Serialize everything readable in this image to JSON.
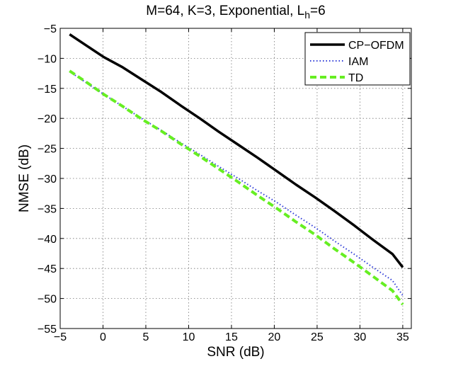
{
  "chart_data": {
    "type": "line",
    "title_main": "M=64, K=3, Exponential, L",
    "title_sub": "h",
    "title_suffix": "=6",
    "xlabel": "SNR (dB)",
    "ylabel": "NMSE (dB)",
    "xlim": [
      -5,
      36
    ],
    "ylim": [
      -55,
      -5
    ],
    "xticks": [
      -5,
      0,
      5,
      10,
      15,
      20,
      25,
      30,
      35
    ],
    "yticks": [
      -55,
      -50,
      -45,
      -40,
      -35,
      -30,
      -25,
      -20,
      -15,
      -10,
      -5
    ],
    "xtick_labels": [
      "−5",
      "0",
      "5",
      "10",
      "15",
      "20",
      "25",
      "30",
      "35"
    ],
    "ytick_labels": [
      "−55",
      "−50",
      "−45",
      "−40",
      "−35",
      "−30",
      "−25",
      "−20",
      "−15",
      "−10",
      "−5"
    ],
    "grid": true,
    "legend_position": "top-right",
    "x": [
      -3.9,
      -1.8,
      0.1,
      2.3,
      4.5,
      6.8,
      9.0,
      11.3,
      13.5,
      15.8,
      18.0,
      20.3,
      22.5,
      24.8,
      27.0,
      29.3,
      31.5,
      33.8,
      35
    ],
    "series": [
      {
        "name": "CP−OFDM",
        "color": "#000000",
        "style": "solid",
        "values": [
          -6.0,
          -8.0,
          -9.8,
          -11.5,
          -13.5,
          -15.6,
          -17.8,
          -20.0,
          -22.2,
          -24.4,
          -26.5,
          -28.8,
          -31.0,
          -33.2,
          -35.4,
          -37.8,
          -40.2,
          -42.6,
          -44.8
        ]
      },
      {
        "name": "IAM",
        "color": "#2f3cd8",
        "style": "dotted",
        "values": [
          -12.2,
          -14.2,
          -16.0,
          -18.0,
          -20.0,
          -22.0,
          -24.0,
          -26.0,
          -28.0,
          -30.0,
          -32.0,
          -34.0,
          -36.1,
          -38.2,
          -40.4,
          -42.6,
          -44.8,
          -47.0,
          -49.5
        ]
      },
      {
        "name": "TD",
        "color": "#66ee22",
        "style": "dashed",
        "values": [
          -12.1,
          -14.1,
          -16.0,
          -18.0,
          -20.1,
          -22.1,
          -24.2,
          -26.3,
          -28.4,
          -30.6,
          -32.8,
          -35.0,
          -37.2,
          -39.4,
          -41.7,
          -44.0,
          -46.3,
          -48.7,
          -51.0
        ]
      }
    ]
  }
}
